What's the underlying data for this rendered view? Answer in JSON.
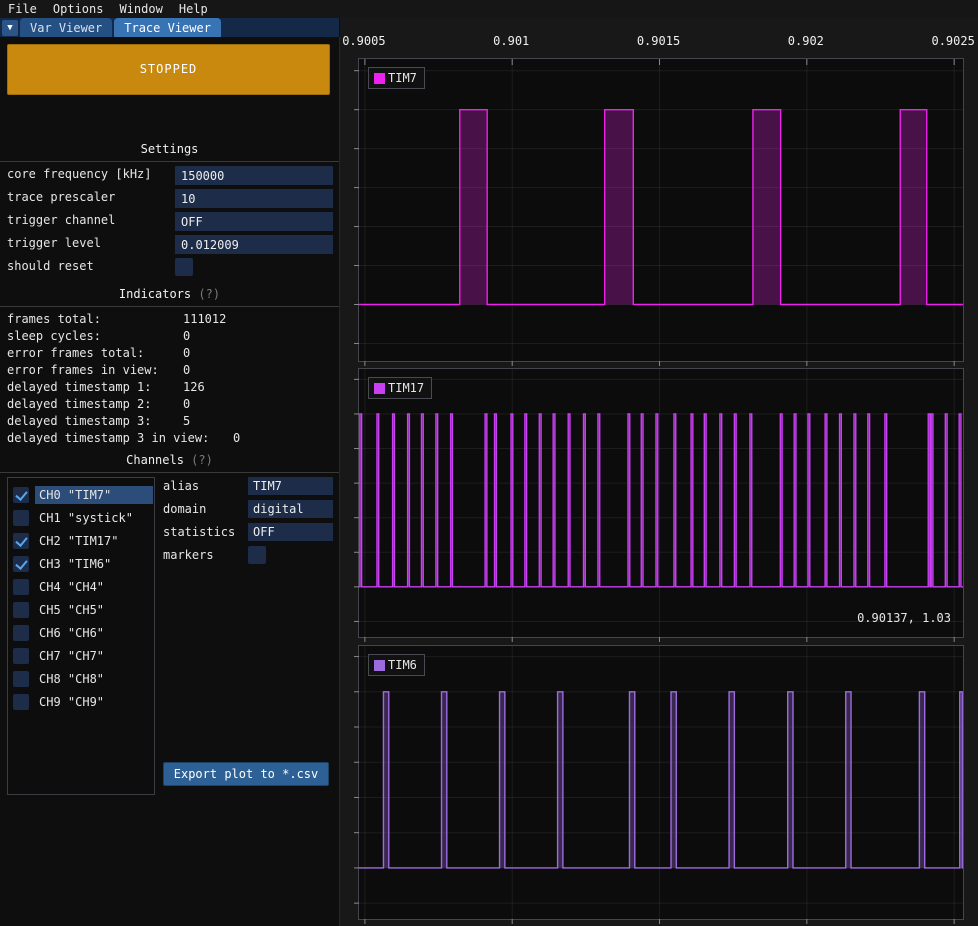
{
  "menu": {
    "items": [
      "File",
      "Options",
      "Window",
      "Help"
    ]
  },
  "tabbar": {
    "collapse_icon": "▼",
    "tabs": [
      {
        "label": "Var Viewer",
        "active": false
      },
      {
        "label": "Trace Viewer",
        "active": true
      }
    ]
  },
  "state_button": {
    "label": "STOPPED",
    "color": "#c9890e"
  },
  "settings": {
    "title": "Settings",
    "fields": [
      {
        "label": "core frequency [kHz]",
        "value": "150000"
      },
      {
        "label": "trace prescaler",
        "value": "10"
      },
      {
        "label": "trigger channel",
        "value": "OFF"
      },
      {
        "label": "trigger level",
        "value": "0.012009"
      }
    ],
    "should_reset": {
      "label": "should reset",
      "checked": false
    }
  },
  "indicators": {
    "title": "Indicators",
    "help": "(?)",
    "rows": [
      {
        "label": "frames total:",
        "value": "111012"
      },
      {
        "label": "sleep cycles:",
        "value": "0"
      },
      {
        "label": "error frames total:",
        "value": "0"
      },
      {
        "label": "error frames in view:",
        "value": "0"
      },
      {
        "label": "delayed timestamp 1:",
        "value": "126"
      },
      {
        "label": "delayed timestamp 2:",
        "value": "0"
      },
      {
        "label": "delayed timestamp 3:",
        "value": "5"
      },
      {
        "label": "delayed timestamp 3 in view:",
        "value": "0"
      }
    ]
  },
  "channels": {
    "title": "Channels",
    "help": "(?)",
    "list": [
      {
        "label": "CH0 \"TIM7\"",
        "checked": true,
        "selected": true
      },
      {
        "label": "CH1 \"systick\"",
        "checked": false,
        "selected": false
      },
      {
        "label": "CH2 \"TIM17\"",
        "checked": true,
        "selected": false
      },
      {
        "label": "CH3 \"TIM6\"",
        "checked": true,
        "selected": false
      },
      {
        "label": "CH4 \"CH4\"",
        "checked": false,
        "selected": false
      },
      {
        "label": "CH5 \"CH5\"",
        "checked": false,
        "selected": false
      },
      {
        "label": "CH6 \"CH6\"",
        "checked": false,
        "selected": false
      },
      {
        "label": "CH7 \"CH7\"",
        "checked": false,
        "selected": false
      },
      {
        "label": "CH8 \"CH8\"",
        "checked": false,
        "selected": false
      },
      {
        "label": "CH9 \"CH9\"",
        "checked": false,
        "selected": false
      }
    ],
    "properties": {
      "alias_label": "alias",
      "alias_value": "TIM7",
      "domain_label": "domain",
      "domain_value": "digital",
      "statistics_label": "statistics",
      "statistics_value": "OFF",
      "markers_label": "markers",
      "markers_checked": false
    },
    "export_button": "Export plot to *.csv"
  },
  "chart_data": [
    {
      "type": "digital",
      "name": "TIM7",
      "color": "#ee22ee",
      "fill": "rgba(238,34,238,0.27)",
      "x_range": [
        0.90048,
        0.90253
      ],
      "y_range": [
        -0.29,
        1.26
      ],
      "y_grid": {
        "start": -0.2,
        "step": 0.2,
        "end": 1.2
      },
      "x_ticks": [
        {
          "v": 0.9005,
          "label": "0.9005"
        },
        {
          "v": 0.901,
          "label": "0.901"
        },
        {
          "v": 0.9015,
          "label": "0.9015"
        },
        {
          "v": 0.902,
          "label": "0.902"
        },
        {
          "v": 0.9025,
          "label": "0.9025"
        }
      ],
      "levels": {
        "low": 0,
        "high": 1
      },
      "pulses": [
        [
          0.900822,
          0.900915
        ],
        [
          0.901314,
          0.901411
        ],
        [
          0.901817,
          0.901911
        ],
        [
          0.902317,
          0.902407
        ]
      ]
    },
    {
      "type": "digital",
      "name": "TIM17",
      "color": "#c93ff2",
      "fill": "rgba(201,63,242,0.35)",
      "x_range": [
        0.90048,
        0.90253
      ],
      "y_range": [
        -0.29,
        1.26
      ],
      "y_grid": {
        "start": -0.2,
        "step": 0.2,
        "end": 1.2
      },
      "x_ticks": [
        {
          "v": 0.9005
        },
        {
          "v": 0.901
        },
        {
          "v": 0.9015
        },
        {
          "v": 0.902
        },
        {
          "v": 0.9025
        }
      ],
      "levels": {
        "low": 0,
        "high": 1
      },
      "pulse_width_s": 6e-06,
      "pulse_times": [
        0.900486,
        0.900544,
        0.900597,
        0.900648,
        0.900695,
        0.900744,
        0.900794,
        0.900911,
        0.900943,
        0.900999,
        0.901046,
        0.901095,
        0.901142,
        0.901193,
        0.901245,
        0.901294,
        0.901396,
        0.901441,
        0.901491,
        0.901552,
        0.90161,
        0.901655,
        0.901708,
        0.901757,
        0.90181,
        0.901913,
        0.90196,
        0.902007,
        0.902065,
        0.902114,
        0.902163,
        0.90221,
        0.902268,
        0.902415,
        0.902425,
        0.902473,
        0.90252
      ],
      "mouse_readout": "0.90137, 1.03"
    },
    {
      "type": "digital",
      "name": "TIM6",
      "color": "#9d6be0",
      "fill": "rgba(157,107,224,0.3)",
      "x_range": [
        0.90048,
        0.90253
      ],
      "y_range": [
        -0.29,
        1.26
      ],
      "y_grid": {
        "start": -0.2,
        "step": 0.2,
        "end": 1.2
      },
      "x_ticks": [
        {
          "v": 0.9005
        },
        {
          "v": 0.901
        },
        {
          "v": 0.9015
        },
        {
          "v": 0.902
        },
        {
          "v": 0.9025
        }
      ],
      "levels": {
        "low": 0,
        "high": 1
      },
      "pulse_width_s": 1.8e-05,
      "pulse_times": [
        0.900572,
        0.900769,
        0.900966,
        0.901163,
        0.901407,
        0.901548,
        0.901745,
        0.901944,
        0.902141,
        0.902391,
        0.902528
      ]
    }
  ]
}
